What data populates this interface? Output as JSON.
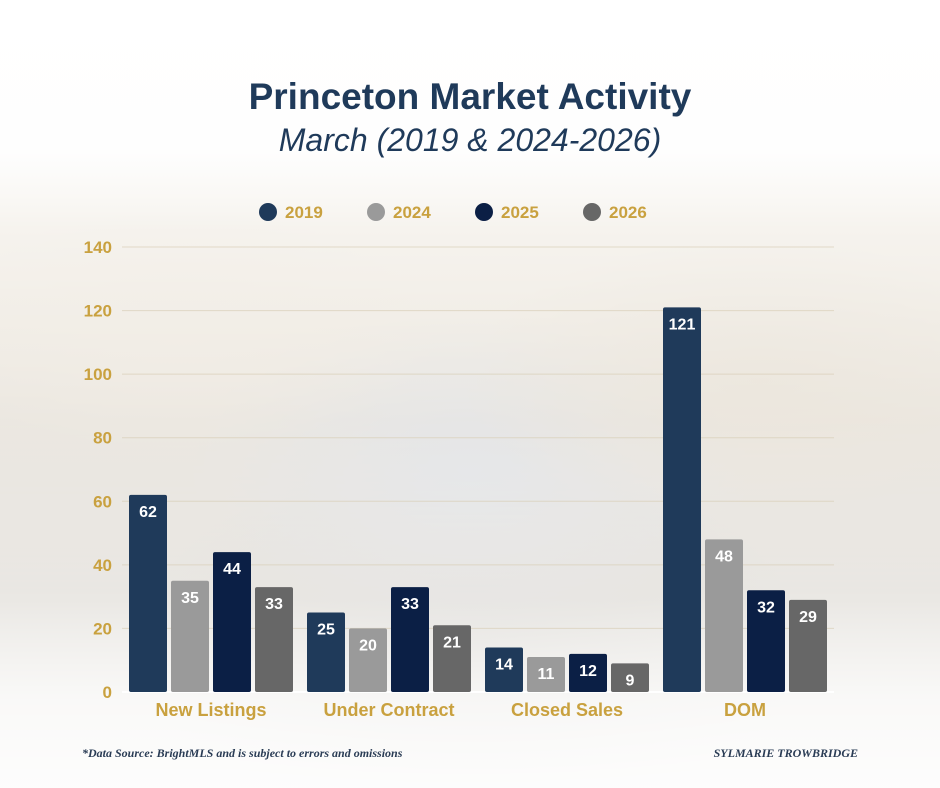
{
  "title": "Princeton Market Activity",
  "subtitle": "March (2019 & 2024-2026)",
  "footer": {
    "source": "*Data Source: BrightMLS and is subject to errors and omissions",
    "brand": "SYLMARIE TROWBRIDGE"
  },
  "colors": {
    "accent_gold": "#c9a13f",
    "title_navy": "#1f3a5a"
  },
  "chart_data": {
    "type": "bar",
    "title": "Princeton Market Activity",
    "subtitle": "March (2019 & 2024-2026)",
    "xlabel": "",
    "ylabel": "",
    "ylim": [
      0,
      140
    ],
    "yticks": [
      0,
      20,
      40,
      60,
      80,
      100,
      120,
      140
    ],
    "grid": true,
    "legend_position": "top-center",
    "categories": [
      "New Listings",
      "Under Contract",
      "Closed Sales",
      "DOM"
    ],
    "series": [
      {
        "name": "2019",
        "color": "#1f3a5a",
        "values": [
          62,
          25,
          14,
          121
        ]
      },
      {
        "name": "2024",
        "color": "#9a9a9a",
        "values": [
          35,
          20,
          11,
          48
        ]
      },
      {
        "name": "2025",
        "color": "#0b1f45",
        "values": [
          44,
          33,
          12,
          32
        ]
      },
      {
        "name": "2026",
        "color": "#676767",
        "values": [
          33,
          21,
          9,
          29
        ]
      }
    ]
  }
}
